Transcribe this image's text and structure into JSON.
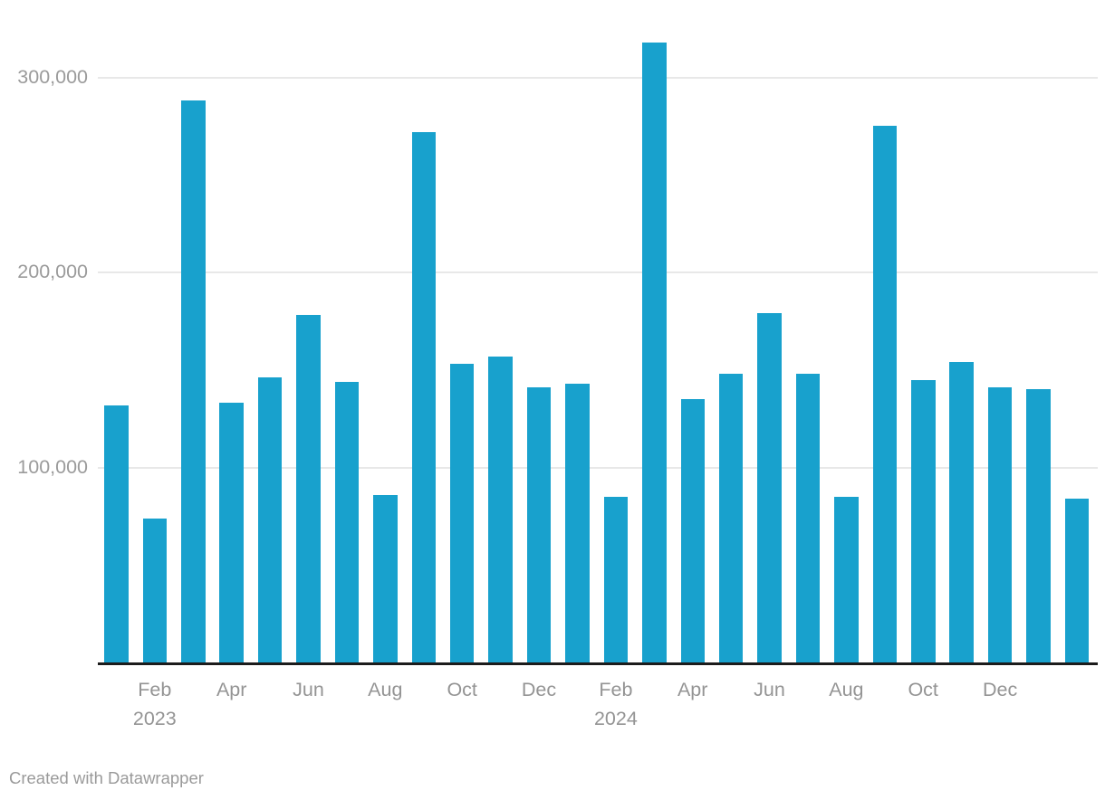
{
  "chart_data": {
    "type": "bar",
    "x": [
      "Jan 2023",
      "Feb 2023",
      "Mar 2023",
      "Apr 2023",
      "May 2023",
      "Jun 2023",
      "Jul 2023",
      "Aug 2023",
      "Sep 2023",
      "Oct 2023",
      "Nov 2023",
      "Dec 2023",
      "Jan 2024",
      "Feb 2024",
      "Mar 2024",
      "Apr 2024",
      "May 2024",
      "Jun 2024",
      "Jul 2024",
      "Aug 2024",
      "Sep 2024",
      "Oct 2024",
      "Nov 2024",
      "Dec 2024",
      "Jan 2025",
      "Feb 2025"
    ],
    "values": [
      132000,
      74000,
      288000,
      133000,
      146000,
      178000,
      144000,
      86000,
      272000,
      153000,
      157000,
      141000,
      143000,
      85000,
      318000,
      135000,
      148000,
      179000,
      148000,
      85000,
      275000,
      145000,
      154000,
      141000,
      140000,
      84000
    ],
    "title": "",
    "xlabel": "",
    "ylabel": "",
    "ylim": [
      0,
      340000
    ],
    "grid": "horizontal",
    "legend": "none",
    "yticks": [
      {
        "value": 100000,
        "label": "100,000"
      },
      {
        "value": 200000,
        "label": "200,000"
      },
      {
        "value": 300000,
        "label": "300,000"
      }
    ],
    "xticks": [
      {
        "index": 1,
        "label": "Feb",
        "year": "2023"
      },
      {
        "index": 3,
        "label": "Apr"
      },
      {
        "index": 5,
        "label": "Jun"
      },
      {
        "index": 7,
        "label": "Aug"
      },
      {
        "index": 9,
        "label": "Oct"
      },
      {
        "index": 11,
        "label": "Dec"
      },
      {
        "index": 13,
        "label": "Feb",
        "year": "2024"
      },
      {
        "index": 15,
        "label": "Apr"
      },
      {
        "index": 17,
        "label": "Jun"
      },
      {
        "index": 19,
        "label": "Aug"
      },
      {
        "index": 21,
        "label": "Oct"
      },
      {
        "index": 23,
        "label": "Dec"
      }
    ],
    "colors": {
      "bar": "#18a1cd",
      "gridline": "#e8e8e8",
      "axis_line": "#1c1c1c",
      "tick_label": "#9b9b9b"
    }
  },
  "footer": {
    "credit": "Created with Datawrapper"
  }
}
